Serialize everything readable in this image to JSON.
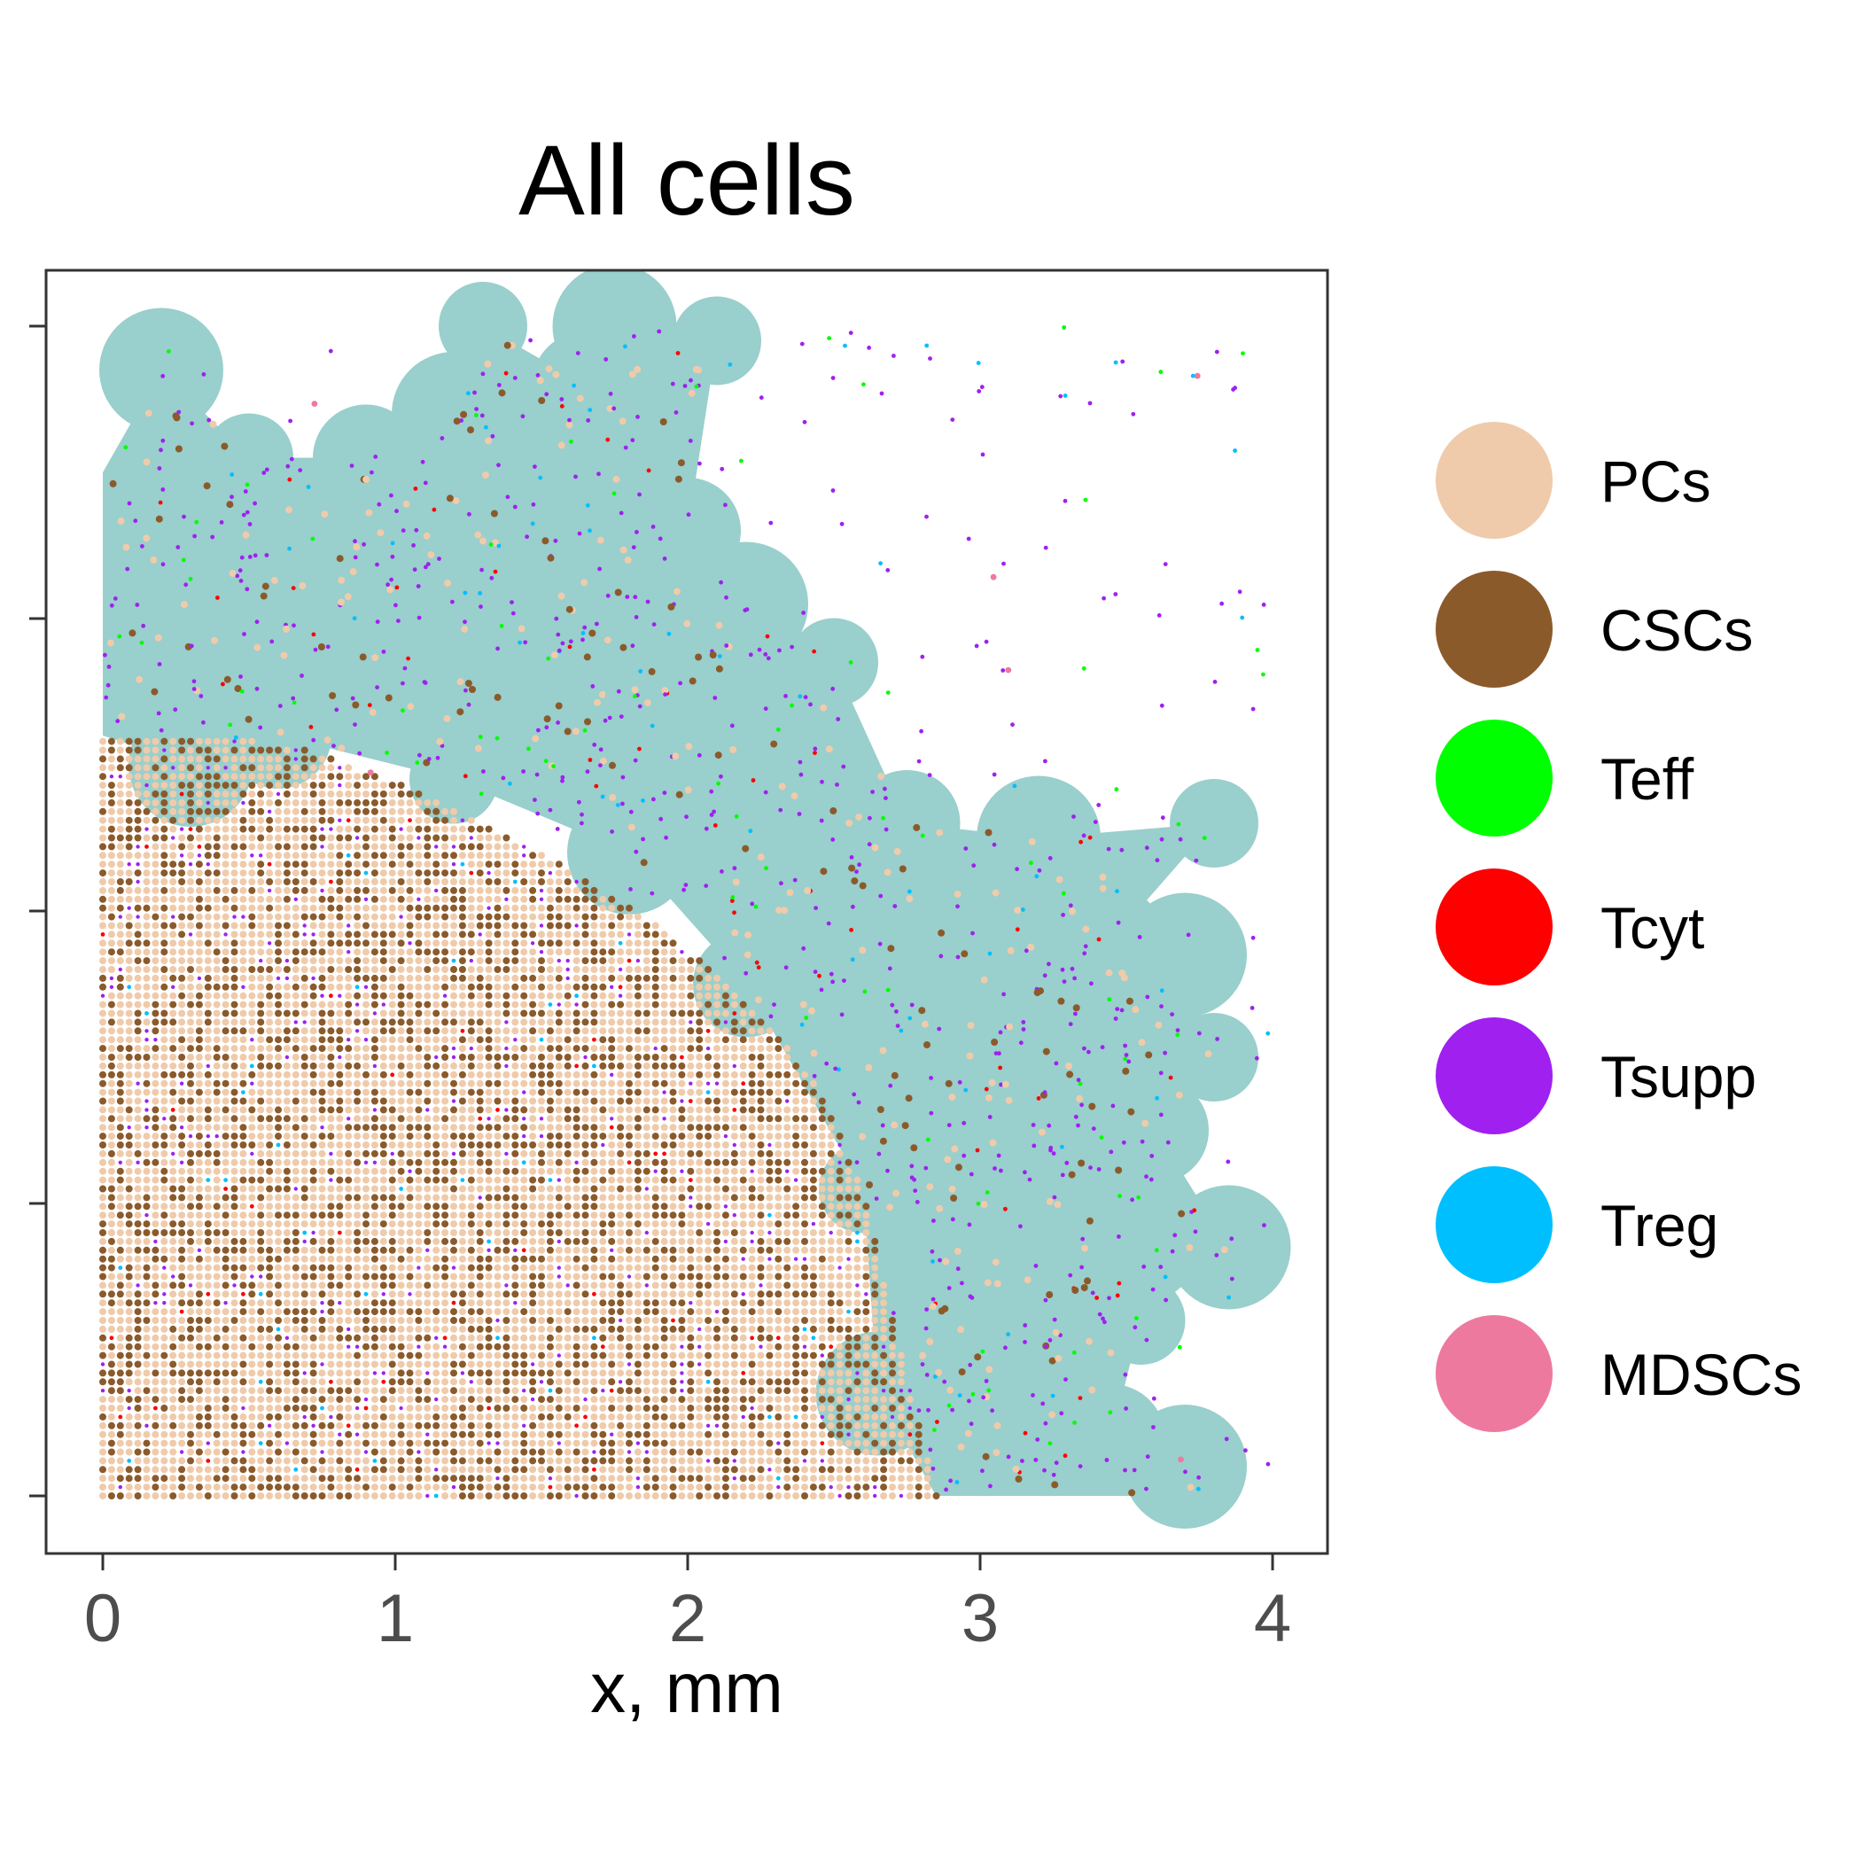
{
  "chart_data": {
    "type": "scatter",
    "title": "All cells",
    "xlabel": "x, mm",
    "ylabel": "",
    "xlim": [
      -0.2,
      4.2
    ],
    "ylim": [
      -0.2,
      4.2
    ],
    "x_ticks": [
      0,
      1,
      2,
      3,
      4
    ],
    "x_tick_labels": [
      "0",
      "1",
      "2",
      "3",
      "4"
    ],
    "y_ticks": [
      0,
      1,
      2,
      3,
      4
    ],
    "y_tick_labels": [],
    "grid": false,
    "legend_position": "right",
    "background_region": {
      "color": "#99cfcc",
      "description_points": [
        [
          0.0,
          2.6
        ],
        [
          0.0,
          3.5
        ],
        [
          0.2,
          3.85
        ],
        [
          0.5,
          3.55
        ],
        [
          0.9,
          3.55
        ],
        [
          1.2,
          3.7
        ],
        [
          1.3,
          4.0
        ],
        [
          1.65,
          3.8
        ],
        [
          1.75,
          4.0
        ],
        [
          2.1,
          3.95
        ],
        [
          2.0,
          3.3
        ],
        [
          2.2,
          3.05
        ],
        [
          2.5,
          2.85
        ],
        [
          2.75,
          2.3
        ],
        [
          3.2,
          2.25
        ],
        [
          3.8,
          2.3
        ],
        [
          3.45,
          1.9
        ],
        [
          3.7,
          1.85
        ],
        [
          3.8,
          1.5
        ],
        [
          3.6,
          1.25
        ],
        [
          3.85,
          0.85
        ],
        [
          3.55,
          0.6
        ],
        [
          3.45,
          0.2
        ],
        [
          3.7,
          0.1
        ],
        [
          3.8,
          0.0
        ],
        [
          2.85,
          0.0
        ],
        [
          2.65,
          0.35
        ],
        [
          2.6,
          1.05
        ],
        [
          2.2,
          1.75
        ],
        [
          1.8,
          2.2
        ],
        [
          1.2,
          2.45
        ],
        [
          0.6,
          2.6
        ],
        [
          0.3,
          2.5
        ]
      ]
    },
    "series": [
      {
        "name": "PCs",
        "color": "#efcbab",
        "marker_size": "medium"
      },
      {
        "name": "CSCs",
        "color": "#8b5a2b",
        "marker_size": "medium"
      },
      {
        "name": "Teff",
        "color": "#00ff00",
        "marker_size": "small"
      },
      {
        "name": "Tcyt",
        "color": "#ff0000",
        "marker_size": "small"
      },
      {
        "name": "Tsupp",
        "color": "#a020f0",
        "marker_size": "small"
      },
      {
        "name": "Treg",
        "color": "#00bfff",
        "marker_size": "small"
      },
      {
        "name": "MDSCs",
        "color": "#ee799f",
        "marker_size": "small"
      }
    ],
    "tumor_boundary_points": [
      [
        0.0,
        2.6
      ],
      [
        0.4,
        2.6
      ],
      [
        0.7,
        2.55
      ],
      [
        1.1,
        2.4
      ],
      [
        1.5,
        2.2
      ],
      [
        1.9,
        1.95
      ],
      [
        2.2,
        1.7
      ],
      [
        2.45,
        1.4
      ],
      [
        2.6,
        1.05
      ],
      [
        2.7,
        0.6
      ],
      [
        2.8,
        0.2
      ],
      [
        2.85,
        0.0
      ]
    ]
  }
}
